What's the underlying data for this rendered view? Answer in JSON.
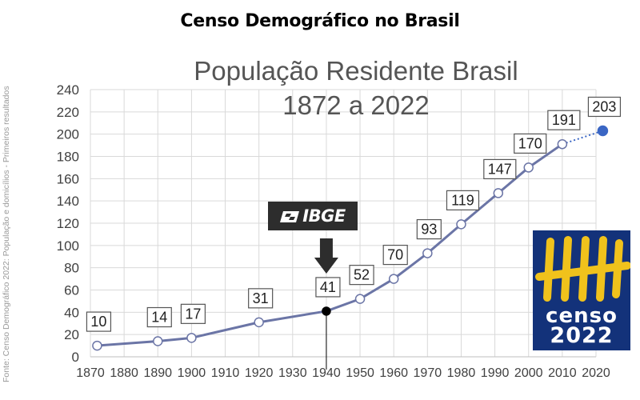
{
  "page_title": "Censo Demográfico no Brasil",
  "side_note": "Fonte: Censo Demográfico 2022: População e domicílios - Primeiros resultados",
  "logos": {
    "ibge": "IBGE",
    "censo_word": "censo",
    "censo_year": "2022"
  },
  "colors": {
    "line": "#6b75a6",
    "dotted_point": "#3a66c4",
    "highlight_point": "#000000",
    "label_border": "#555555",
    "censo_bg": "#13327a",
    "censo_marks": "#f0c21c"
  },
  "chart_data": {
    "type": "line",
    "title": "População Residente Brasil",
    "subtitle": "1872 a 2022",
    "xlabel": "",
    "ylabel": "",
    "xlim": [
      1870,
      2020
    ],
    "ylim": [
      0,
      240
    ],
    "x_ticks": [
      "1870",
      "1880",
      "1890",
      "1900",
      "1910",
      "1920",
      "1930",
      "1940",
      "1950",
      "1960",
      "1970",
      "1980",
      "1990",
      "2000",
      "2010",
      "2020"
    ],
    "y_ticks": [
      "0",
      "20",
      "40",
      "60",
      "80",
      "100",
      "120",
      "140",
      "160",
      "180",
      "200",
      "220",
      "240"
    ],
    "grid": true,
    "points": [
      {
        "x": 1872,
        "y": 10,
        "label": "10"
      },
      {
        "x": 1890,
        "y": 14,
        "label": "14"
      },
      {
        "x": 1900,
        "y": 17,
        "label": "17"
      },
      {
        "x": 1920,
        "y": 31,
        "label": "31"
      },
      {
        "x": 1940,
        "y": 41,
        "label": "41",
        "highlight": true
      },
      {
        "x": 1950,
        "y": 52,
        "label": "52"
      },
      {
        "x": 1960,
        "y": 70,
        "label": "70"
      },
      {
        "x": 1970,
        "y": 93,
        "label": "93"
      },
      {
        "x": 1980,
        "y": 119,
        "label": "119"
      },
      {
        "x": 1991,
        "y": 147,
        "label": "147"
      },
      {
        "x": 2000,
        "y": 170,
        "label": "170"
      },
      {
        "x": 2010,
        "y": 191,
        "label": "191"
      },
      {
        "x": 2022,
        "y": 203,
        "label": "203",
        "dotted": true
      }
    ],
    "annotations": [
      {
        "type": "arrow",
        "x": 1940,
        "text": ""
      }
    ]
  }
}
